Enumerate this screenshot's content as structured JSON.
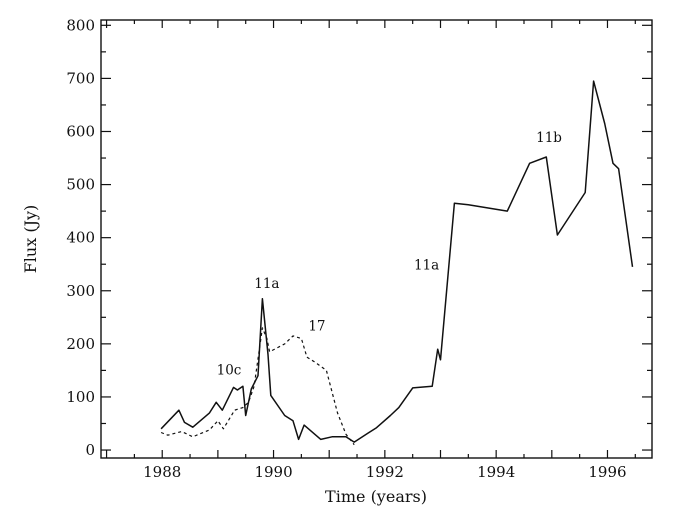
{
  "chart_data": {
    "type": "line",
    "xlabel": "Time (years)",
    "ylabel": "Flux (Jy)",
    "xlim": [
      1986.9,
      1996.8
    ],
    "ylim": [
      -15,
      810
    ],
    "x_ticks": [
      1988,
      1990,
      1992,
      1994,
      1996
    ],
    "y_ticks": [
      0,
      100,
      200,
      300,
      400,
      500,
      600,
      700,
      800
    ],
    "x_tick_labels": [
      "1988",
      "1990",
      "1992",
      "1994",
      "1996"
    ],
    "y_tick_labels": [
      "0",
      "100",
      "200",
      "300",
      "400",
      "500",
      "600",
      "700",
      "800"
    ],
    "grid": false,
    "series": [
      {
        "style": "solid",
        "points": [
          [
            1987.98,
            40
          ],
          [
            1988.3,
            75
          ],
          [
            1988.4,
            52
          ],
          [
            1988.55,
            43
          ],
          [
            1988.85,
            70
          ],
          [
            1988.97,
            90
          ],
          [
            1989.08,
            75
          ],
          [
            1989.28,
            118
          ],
          [
            1989.35,
            113
          ],
          [
            1989.45,
            120
          ],
          [
            1989.5,
            65
          ],
          [
            1989.6,
            115
          ],
          [
            1989.72,
            140
          ],
          [
            1989.8,
            285
          ],
          [
            1989.9,
            180
          ],
          [
            1989.95,
            103
          ],
          [
            1990.2,
            65
          ],
          [
            1990.35,
            55
          ],
          [
            1990.45,
            20
          ],
          [
            1990.55,
            47
          ],
          [
            1990.85,
            20
          ],
          [
            1991.05,
            25
          ],
          [
            1991.3,
            25
          ],
          [
            1991.45,
            15
          ],
          [
            1991.7,
            32
          ],
          [
            1991.85,
            42
          ],
          [
            1992.1,
            65
          ],
          [
            1992.25,
            80
          ],
          [
            1992.5,
            117
          ],
          [
            1992.85,
            120
          ],
          [
            1992.95,
            190
          ],
          [
            1993.0,
            170
          ],
          [
            1993.25,
            465
          ],
          [
            1993.5,
            462
          ],
          [
            1994.2,
            450
          ],
          [
            1994.6,
            540
          ],
          [
            1994.9,
            552
          ],
          [
            1995.1,
            405
          ],
          [
            1995.6,
            485
          ],
          [
            1995.75,
            695
          ],
          [
            1995.95,
            615
          ],
          [
            1996.1,
            540
          ],
          [
            1996.2,
            530
          ],
          [
            1996.45,
            345
          ]
        ]
      },
      {
        "style": "dashed",
        "points": [
          [
            1987.98,
            33
          ],
          [
            1988.1,
            28
          ],
          [
            1988.35,
            35
          ],
          [
            1988.55,
            25
          ],
          [
            1988.85,
            38
          ],
          [
            1989.0,
            55
          ],
          [
            1989.1,
            40
          ],
          [
            1989.3,
            75
          ],
          [
            1989.45,
            80
          ],
          [
            1989.55,
            90
          ],
          [
            1989.65,
            120
          ],
          [
            1989.8,
            230
          ],
          [
            1989.88,
            210
          ],
          [
            1989.93,
            185
          ],
          [
            1990.2,
            200
          ],
          [
            1990.35,
            215
          ],
          [
            1990.5,
            210
          ],
          [
            1990.6,
            175
          ],
          [
            1990.75,
            165
          ],
          [
            1990.95,
            150
          ],
          [
            1991.15,
            70
          ],
          [
            1991.3,
            30
          ],
          [
            1991.45,
            10
          ]
        ]
      }
    ],
    "annotations": [
      {
        "text": "10c",
        "x": 1989.2,
        "y": 142
      },
      {
        "text": "11a",
        "x": 1989.88,
        "y": 305
      },
      {
        "text": "17",
        "x": 1990.78,
        "y": 225
      },
      {
        "text": "11a",
        "x": 1992.75,
        "y": 340
      },
      {
        "text": "11b",
        "x": 1994.95,
        "y": 580
      }
    ]
  }
}
